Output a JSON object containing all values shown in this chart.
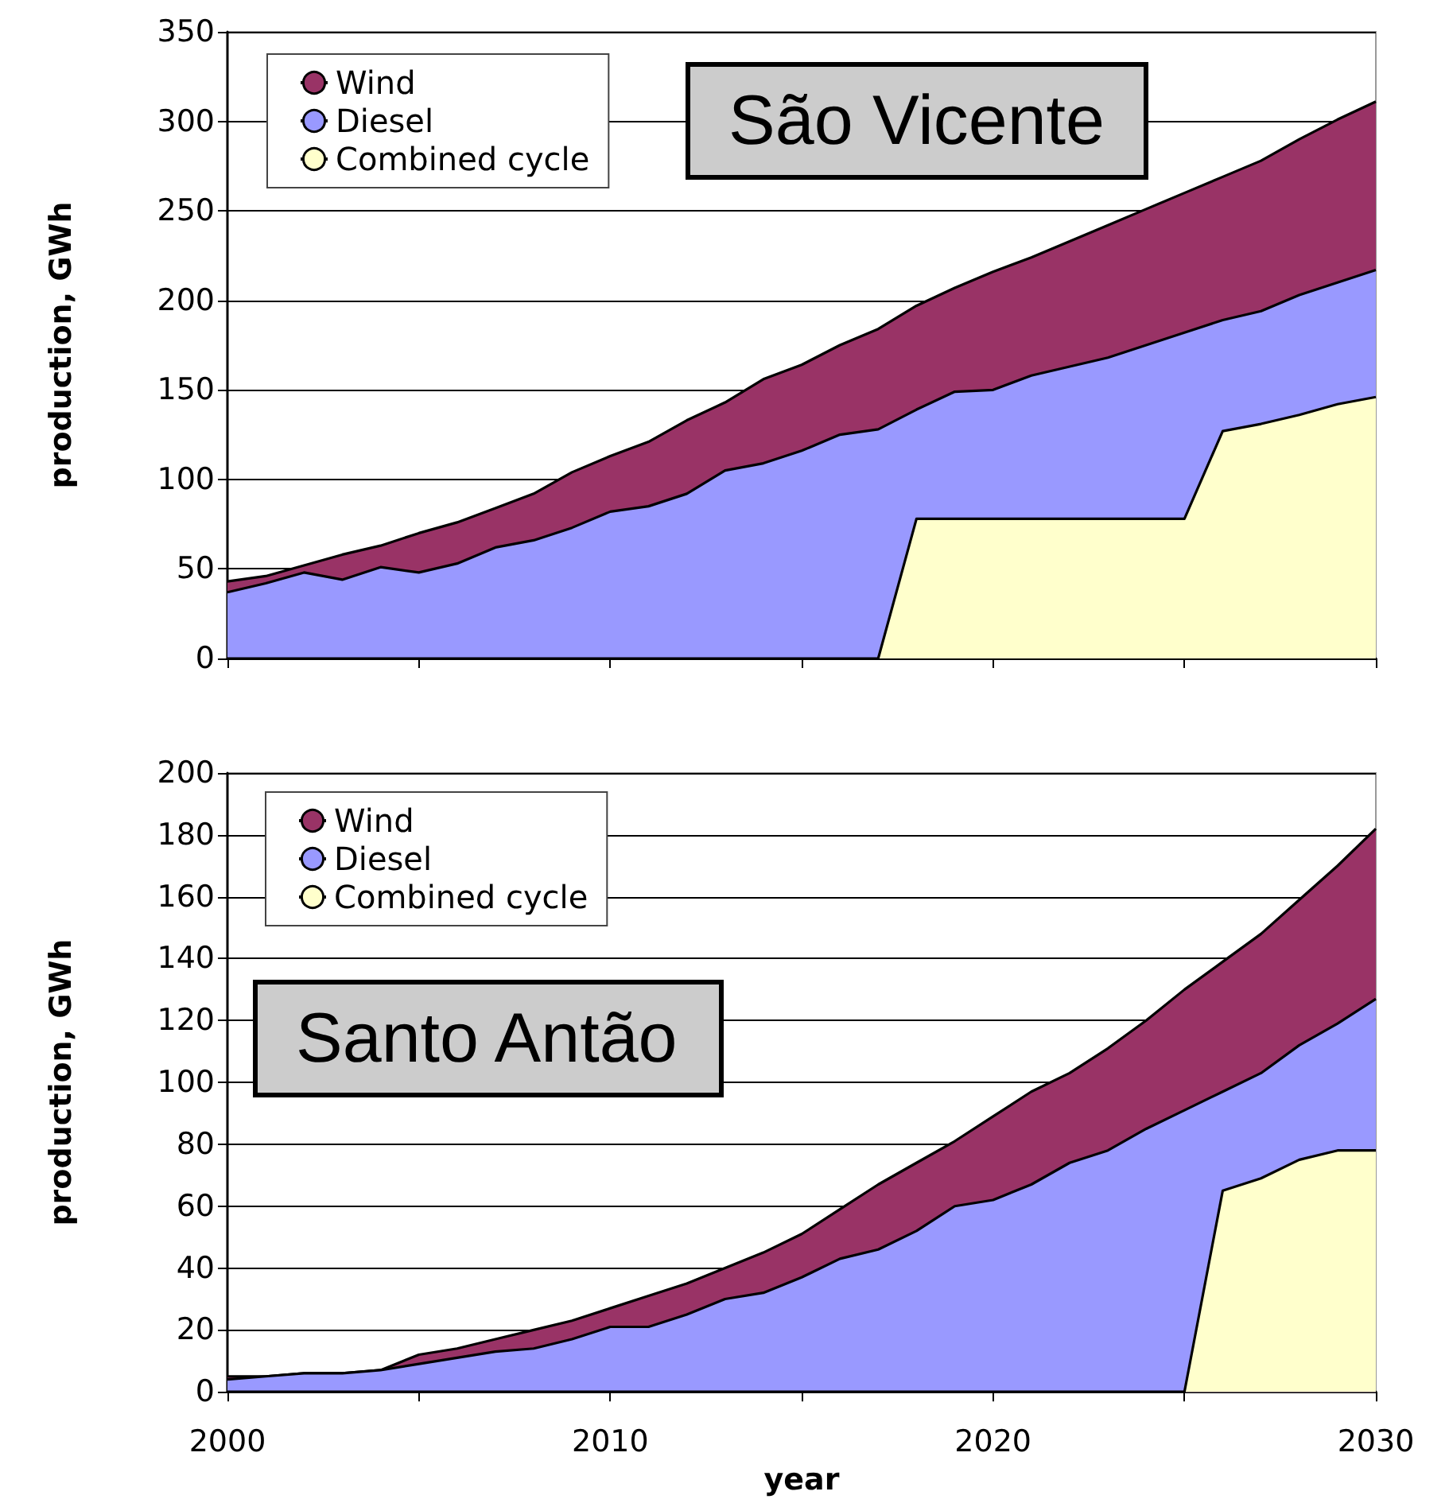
{
  "chart_data": [
    {
      "type": "area",
      "title": "São Vicente",
      "ylabel": "production, GWh",
      "stacked": true,
      "legend": "top left",
      "grid": "y",
      "tick_labels": "y",
      "x": [
        2000,
        2001,
        2002,
        2003,
        2004,
        2005,
        2006,
        2007,
        2008,
        2009,
        2010,
        2011,
        2012,
        2013,
        2014,
        2015,
        2016,
        2017,
        2018,
        2019,
        2020,
        2021,
        2022,
        2023,
        2024,
        2025,
        2026,
        2027,
        2028,
        2029,
        2030
      ],
      "xlim": [
        2000,
        2030
      ],
      "xticks": [
        2000,
        {
          "value": 2005,
          "label": null
        },
        2010,
        {
          "value": 2015,
          "label": null
        },
        2020,
        {
          "value": 2025,
          "label": null
        },
        2030
      ],
      "ylim": [
        0,
        350
      ],
      "yticks": [
        0,
        50,
        100,
        150,
        200,
        250,
        300,
        350
      ],
      "series": [
        {
          "name": "Combined cycle",
          "color": "#ffffcc",
          "values": [
            0,
            0,
            0,
            0,
            0,
            0,
            0,
            0,
            0,
            0,
            0,
            0,
            0,
            0,
            0,
            0,
            0,
            0,
            78,
            78,
            78,
            78,
            78,
            78,
            78,
            78,
            127,
            131,
            136,
            142,
            146
          ]
        },
        {
          "name": "Diesel",
          "color": "#9999ff",
          "values": [
            37,
            42,
            48,
            44,
            51,
            48,
            53,
            62,
            66,
            73,
            82,
            85,
            92,
            105,
            109,
            116,
            125,
            128,
            61,
            71,
            72,
            80,
            85,
            90,
            97,
            104,
            62,
            63,
            67,
            68,
            71
          ]
        },
        {
          "name": "Wind",
          "color": "#993366",
          "values": [
            6,
            4,
            4,
            14,
            12,
            22,
            23,
            22,
            26,
            31,
            31,
            36,
            41,
            38,
            47,
            48,
            50,
            56,
            58,
            58,
            66,
            66,
            70,
            74,
            76,
            78,
            80,
            84,
            87,
            91,
            94
          ]
        }
      ]
    },
    {
      "type": "area",
      "title": "Santo Antão",
      "xlabel": "year",
      "ylabel": "production, GWh",
      "stacked": true,
      "legend": "top left",
      "grid": "y",
      "x": [
        2000,
        2001,
        2002,
        2003,
        2004,
        2005,
        2006,
        2007,
        2008,
        2009,
        2010,
        2011,
        2012,
        2013,
        2014,
        2015,
        2016,
        2017,
        2018,
        2019,
        2020,
        2021,
        2022,
        2023,
        2024,
        2025,
        2026,
        2027,
        2028,
        2029,
        2030
      ],
      "xlim": [
        2000,
        2030
      ],
      "xticks": [
        2000,
        {
          "value": 2005,
          "label": null
        },
        2010,
        {
          "value": 2015,
          "label": null
        },
        2020,
        {
          "value": 2025,
          "label": null
        },
        2030
      ],
      "ylim": [
        0,
        200
      ],
      "yticks": [
        0,
        20,
        40,
        60,
        80,
        100,
        120,
        140,
        160,
        180,
        200
      ],
      "series": [
        {
          "name": "Combined cycle",
          "color": "#ffffcc",
          "values": [
            0,
            0,
            0,
            0,
            0,
            0,
            0,
            0,
            0,
            0,
            0,
            0,
            0,
            0,
            0,
            0,
            0,
            0,
            0,
            0,
            0,
            0,
            0,
            0,
            0,
            0,
            65,
            69,
            75,
            78,
            78
          ]
        },
        {
          "name": "Diesel",
          "color": "#9999ff",
          "values": [
            4,
            5,
            6,
            6,
            7,
            9,
            11,
            13,
            14,
            17,
            21,
            21,
            25,
            30,
            32,
            37,
            43,
            46,
            52,
            60,
            62,
            67,
            74,
            78,
            85,
            91,
            32,
            34,
            37,
            41,
            49
          ]
        },
        {
          "name": "Wind",
          "color": "#993366",
          "values": [
            1,
            0,
            0,
            0,
            0,
            3,
            3,
            4,
            6,
            6,
            6,
            10,
            10,
            10,
            13,
            14,
            16,
            21,
            22,
            21,
            27,
            30,
            29,
            33,
            35,
            39,
            42,
            45,
            47,
            51,
            55
          ]
        }
      ]
    }
  ]
}
